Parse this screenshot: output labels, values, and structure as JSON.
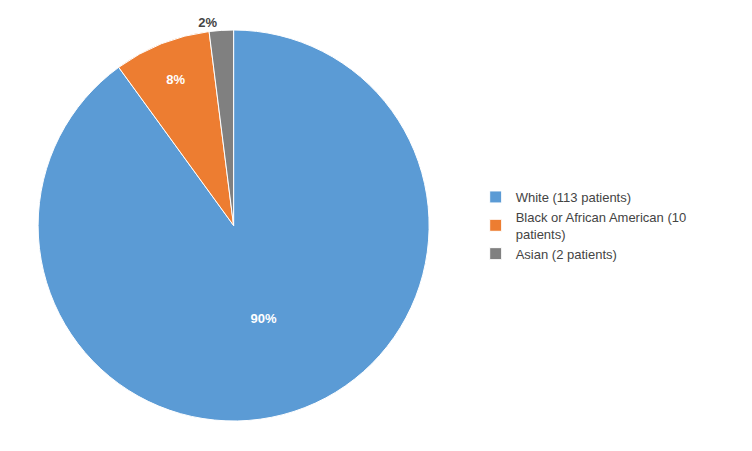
{
  "chart_data": {
    "type": "pie",
    "categories": [
      "White (113 patients)",
      "Black or African American (10\npatients)",
      "Asian (2 patients)"
    ],
    "values": [
      90,
      8,
      2
    ],
    "value_labels": [
      "90%",
      "8%",
      "2%"
    ],
    "colors": [
      "#5B9BD5",
      "#ED7D31",
      "#808080"
    ],
    "data_labels": true,
    "legend": "right"
  }
}
